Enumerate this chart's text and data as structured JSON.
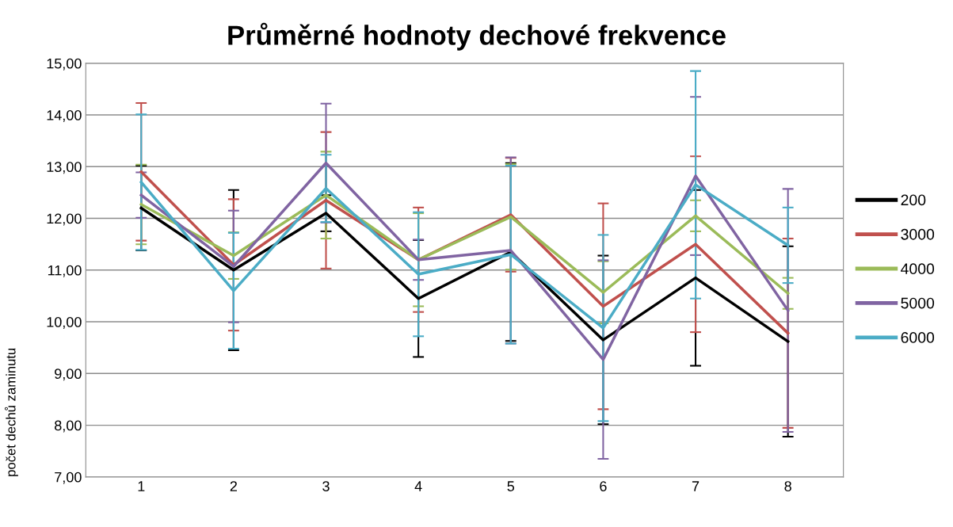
{
  "chart_data": {
    "type": "line",
    "title": "Průměrné hodnoty dechové frekvence",
    "ylabel": "počet dechů zaminutu",
    "categories": [
      "1",
      "2",
      "3",
      "4",
      "5",
      "6",
      "7",
      "8"
    ],
    "series": [
      {
        "name": "200",
        "color": "#000000",
        "values": [
          12.2,
          11.0,
          12.1,
          10.45,
          11.35,
          9.65,
          10.85,
          9.62
        ],
        "errors": [
          0.82,
          1.55,
          0.35,
          1.13,
          1.72,
          1.63,
          1.7,
          1.84
        ]
      },
      {
        "name": "3000",
        "color": "#c0504d",
        "values": [
          12.9,
          11.1,
          12.35,
          11.2,
          12.07,
          10.3,
          11.5,
          9.78
        ],
        "errors": [
          1.33,
          1.27,
          1.32,
          1.01,
          1.1,
          1.99,
          1.7,
          1.83
        ]
      },
      {
        "name": "4000",
        "color": "#9bbb59",
        "values": [
          12.27,
          11.28,
          12.45,
          11.2,
          12.03,
          10.57,
          12.05,
          10.55
        ],
        "errors": [
          0.77,
          0.45,
          0.84,
          0.9,
          1.02,
          0.6,
          0.3,
          0.3
        ]
      },
      {
        "name": "5000",
        "color": "#8064a2",
        "values": [
          12.45,
          11.07,
          13.07,
          11.2,
          11.38,
          9.27,
          12.82,
          10.22
        ],
        "errors": [
          0.44,
          1.08,
          1.15,
          0.39,
          1.8,
          1.92,
          1.53,
          2.35
        ]
      },
      {
        "name": "6000",
        "color": "#4bacc6",
        "values": [
          12.7,
          10.6,
          12.58,
          10.92,
          11.3,
          9.88,
          12.65,
          11.48
        ],
        "errors": [
          1.31,
          1.12,
          0.65,
          1.2,
          1.72,
          1.8,
          2.2,
          0.73
        ]
      }
    ],
    "ylim": [
      7,
      15
    ],
    "yticks": [
      {
        "value": 7,
        "label": "7,00"
      },
      {
        "value": 8,
        "label": "8,00"
      },
      {
        "value": 9,
        "label": "9,00"
      },
      {
        "value": 10,
        "label": "10,00"
      },
      {
        "value": 11,
        "label": "11,00"
      },
      {
        "value": 12,
        "label": "12,00"
      },
      {
        "value": 13,
        "label": "13,00"
      },
      {
        "value": 14,
        "label": "14,00"
      },
      {
        "value": 15,
        "label": "15,00"
      }
    ],
    "grid": "y",
    "legend": "right",
    "marker": "none",
    "line_style": "solid"
  }
}
